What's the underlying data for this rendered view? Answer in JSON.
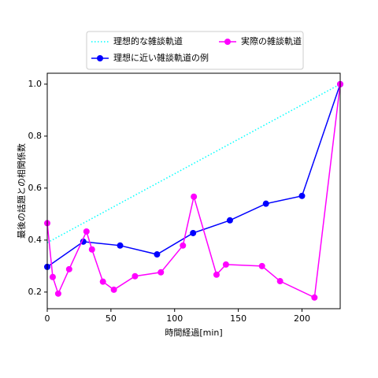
{
  "chart_data": {
    "type": "line",
    "xlabel": "時間経過[min]",
    "ylabel": "最後の話題との相関係数",
    "xlim": [
      0,
      230
    ],
    "ylim": [
      0.136,
      1.042
    ],
    "xticks": [
      0,
      50,
      100,
      150,
      200
    ],
    "yticks": [
      0.2,
      0.4,
      0.6,
      0.8,
      {
        "value": 1.0,
        "label": "1.0"
      }
    ],
    "grid": false,
    "legend": "upper center",
    "series": [
      {
        "name": "理想的な雑談軌道",
        "color": "#00ffff",
        "style": "dotted",
        "marker": false,
        "x": [
          0,
          230
        ],
        "values": [
          0.39,
          1.0
        ]
      },
      {
        "name": "理想に近い雑談軌道の例",
        "color": "#0000ff",
        "style": "solid",
        "marker": true,
        "x": [
          0,
          28.3,
          57.2,
          86.2,
          114.5,
          143.4,
          171.7,
          200,
          230
        ],
        "values": [
          0.297,
          0.394,
          0.379,
          0.345,
          0.427,
          0.476,
          0.54,
          0.57,
          1.0
        ]
      },
      {
        "name": "実際の雑談軌道",
        "color": "#ff00ff",
        "style": "solid",
        "marker": true,
        "x": [
          0,
          4.3,
          8.6,
          17.2,
          30.8,
          35.1,
          43.7,
          52.3,
          68.9,
          89.2,
          106.5,
          115.1,
          132.9,
          140.3,
          168.6,
          182.8,
          209.8,
          230
        ],
        "values": [
          0.465,
          0.258,
          0.194,
          0.288,
          0.433,
          0.364,
          0.24,
          0.209,
          0.261,
          0.276,
          0.379,
          0.567,
          0.267,
          0.306,
          0.3,
          0.242,
          0.179,
          1.0
        ]
      }
    ]
  }
}
